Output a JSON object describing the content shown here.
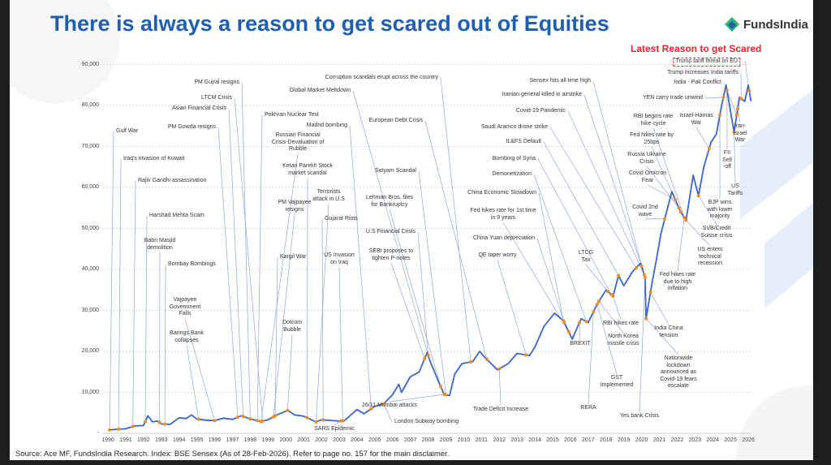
{
  "title": "There is always a reason to get scared out of Equities",
  "logo": {
    "text": "FundsIndia",
    "brand_color": "#1f5fae",
    "accent_color": "#2bb673"
  },
  "latest_header": "Latest Reason to get Scared",
  "source": "Source: Ace MF, FundsIndia Research. Index: BSE Sensex (As of 28-Feb-2026). Refer to page no. 157 for the main disclaimer.",
  "chart_data": {
    "type": "line",
    "title": "",
    "xlabel": "",
    "ylabel": "",
    "xlim": [
      1990,
      2026
    ],
    "ylim": [
      0,
      90000
    ],
    "grid": true,
    "line_color": "#3a66c4",
    "marker_color": "#f08a24",
    "y_ticks": [
      "-",
      "10,000",
      "20,000",
      "30,000",
      "40,000",
      "50,000",
      "60,000",
      "70,000",
      "80,000",
      "90,000"
    ],
    "x_ticks": [
      "1990",
      "1991",
      "1992",
      "1993",
      "1994",
      "1995",
      "1996",
      "1997",
      "1998",
      "1999",
      "2000",
      "2001",
      "2002",
      "2003",
      "2004",
      "2005",
      "2006",
      "2007",
      "2008",
      "2009",
      "2010",
      "2011",
      "2012",
      "2013",
      "2014",
      "2015",
      "2016",
      "2017",
      "2018",
      "2019",
      "2020",
      "2021",
      "2022",
      "2023",
      "2024",
      "2025",
      "2026"
    ],
    "series": [
      {
        "x": [
          1990,
          1990.5,
          1991,
          1991.5,
          1992,
          1992.25,
          1992.5,
          1992.8,
          1993,
          1993.5,
          1994,
          1994.4,
          1994.7,
          1995,
          1995.5,
          1996,
          1996.5,
          1997,
          1997.5,
          1998,
          1998.6,
          1999,
          1999.5,
          2000.1,
          2000.5,
          2001,
          2001.7,
          2002,
          2003,
          2003.3,
          2004,
          2004.4,
          2005,
          2005.5,
          2006,
          2006.35,
          2006.5,
          2007,
          2007.5,
          2007.95,
          2008.1,
          2008.5,
          2008.9,
          2009.2,
          2009.5,
          2009.9,
          2010.5,
          2010.9,
          2011.2,
          2011.9,
          2012.5,
          2013,
          2013.7,
          2014,
          2014.5,
          2015.1,
          2015.6,
          2016.1,
          2016.6,
          2017,
          2017.5,
          2018,
          2018.4,
          2018.7,
          2019,
          2019.5,
          2019.95,
          2020.2,
          2020.25,
          2020.6,
          2020.9,
          2021.1,
          2021.7,
          2021.9,
          2022.2,
          2022.5,
          2022.9,
          2023.2,
          2023.5,
          2023.9,
          2024.2,
          2024.5,
          2024.75,
          2025.1,
          2025.2,
          2025.5,
          2025.8,
          2026.0,
          2026.15
        ],
        "y": [
          800,
          1000,
          1100,
          1800,
          1900,
          4300,
          2800,
          3000,
          2300,
          2200,
          3800,
          3600,
          4500,
          3500,
          3200,
          3100,
          3700,
          3400,
          4300,
          3500,
          2900,
          3300,
          4500,
          5600,
          4500,
          4200,
          2800,
          3300,
          3000,
          3100,
          5800,
          4800,
          6600,
          7200,
          9400,
          12000,
          10000,
          13800,
          15000,
          19800,
          17700,
          13500,
          9500,
          9200,
          14500,
          17000,
          17500,
          20000,
          18500,
          15500,
          17000,
          19500,
          19000,
          21000,
          26000,
          29300,
          27500,
          23000,
          28000,
          27000,
          31500,
          35000,
          33500,
          38500,
          36000,
          39500,
          41500,
          38000,
          28000,
          37000,
          44000,
          49000,
          59000,
          57000,
          54000,
          52000,
          63000,
          58000,
          65000,
          71000,
          73000,
          80000,
          85000,
          76000,
          73500,
          82000,
          81000,
          85000,
          81000
        ]
      }
    ],
    "events": [
      {
        "label": "Gulf War",
        "year": 1990.1
      },
      {
        "label": "Iraq's invasion of Kuwait",
        "year": 1990.6
      },
      {
        "label": "Rajiv Gandhi assassination",
        "year": 1991.4
      },
      {
        "label": "Harshad Mehta Scam",
        "year": 1992.1
      },
      {
        "label": "Babri Masjid\ndemolition",
        "year": 1992.9
      },
      {
        "label": "Bombay Bombings",
        "year": 1993.2
      },
      {
        "label": "Vajpayee\nGovernment\nFalls",
        "year": 1996.0
      },
      {
        "label": "Barings Bank\ncollapses",
        "year": 1995.1
      },
      {
        "label": "PM Gowda resigns",
        "year": 1997.3
      },
      {
        "label": "Asian Financial Crisis",
        "year": 1997.6
      },
      {
        "label": "LTCM Crisis",
        "year": 1998.7
      },
      {
        "label": "PM Gujral resigns",
        "year": 1998.0
      },
      {
        "label": "Pokhran Nuclear Test",
        "year": 1998.4
      },
      {
        "label": "Russian Financial\nCrisis-Devaluation of\nRubble",
        "year": 1998.6
      },
      {
        "label": "Ketan Parekh Stock\nmarket scandal",
        "year": 2001.2
      },
      {
        "label": "PM Vajpayee\nresigns",
        "year": 1999.3
      },
      {
        "label": "Terrorists\nattack in U.S",
        "year": 2001.7
      },
      {
        "label": "Gujarat Riots",
        "year": 2002.1
      },
      {
        "label": "Kargil War",
        "year": 1999.4
      },
      {
        "label": "US Invasion\non Iraq",
        "year": 2003.2
      },
      {
        "label": "Dotcom\nBubble",
        "year": 2000.1
      },
      {
        "label": "Corruption scandals erupt across the country",
        "year": 2010.4
      },
      {
        "label": "Global Market Meltdown",
        "year": 2008.0
      },
      {
        "label": "Madrid bombing",
        "year": 2004.8
      },
      {
        "label": "European Debt Crisis",
        "year": 2011.3
      },
      {
        "label": "Satyam Scandal",
        "year": 2009.0
      },
      {
        "label": "Lehman Bros. files\nfor Bankruptcy",
        "year": 2008.7
      },
      {
        "label": "U.S Financial Crisis",
        "year": 2008.0
      },
      {
        "label": "SEBI proposes to\ntighten P-notes",
        "year": 2007.8
      },
      {
        "label": "26/11 Mumbai attacks",
        "year": 2008.9
      },
      {
        "label": "London Subway bombing",
        "year": 2005.5
      },
      {
        "label": "SARS Epidemic",
        "year": 2003.1
      },
      {
        "label": "Trade Deficit Increase",
        "year": 2012.0
      },
      {
        "label": "QE taper worry",
        "year": 2013.5
      },
      {
        "label": "Sensex hits all time high",
        "year": 2020.0
      },
      {
        "label": "Iranian general killed in airstrike",
        "year": 2020.0
      },
      {
        "label": "Covid-19 Pandemic",
        "year": 2020.15
      },
      {
        "label": "Saudi Aramco drone strike",
        "year": 2019.7
      },
      {
        "label": "IL&FS Default",
        "year": 2018.7
      },
      {
        "label": "Bombing of Syria",
        "year": 2018.3
      },
      {
        "label": "Demonetization",
        "year": 2016.9
      },
      {
        "label": "China Economic Slowdown",
        "year": 2015.6
      },
      {
        "label": "Fed hikes rate for 1st time\nin 9 years",
        "year": 2015.9
      },
      {
        "label": "China Yuan depreciation",
        "year": 2015.65
      },
      {
        "label": "LTCG\nTax",
        "year": 2018.1
      },
      {
        "label": "RBI hikes rate",
        "year": 2018.4
      },
      {
        "label": "North Korea\nmissile crisis",
        "year": 2017.6
      },
      {
        "label": "BREXIT",
        "year": 2016.5
      },
      {
        "label": "GST\nImplemented",
        "year": 2017.5
      },
      {
        "label": "RERA",
        "year": 2017.3
      },
      {
        "label": "Yes bank Crisis",
        "year": 2020.2
      },
      {
        "label": "Nationwide\nlockdown\nannounced as\nCovid-19 fears\nescalate",
        "year": 2020.25
      },
      {
        "label": "India China\ntension",
        "year": 2020.5
      },
      {
        "label": "Fed hikes rate\ndue to high\ninflation",
        "year": 2022.4
      },
      {
        "label": "US enters\ntechnical\nrecession",
        "year": 2022.5
      },
      {
        "label": "SVB/Credit\nSuisse crisis",
        "year": 2023.2
      },
      {
        "label": "BJP wins\nwith lower\nmajority",
        "year": 2024.4
      },
      {
        "label": "US\nTariffs",
        "year": 2025.2
      },
      {
        "label": "FII\nSell\n-off",
        "year": 2024.8
      },
      {
        "label": "Iran-\nIsrael\nWar",
        "year": 2025.4
      },
      {
        "label": "Israel-Hamas\nWar",
        "year": 2023.8
      },
      {
        "label": "Covid 2nd\nwave",
        "year": 2021.3
      },
      {
        "label": "Covid Omicron\nFear",
        "year": 2021.9
      },
      {
        "label": "Russia Ukraine\nCrisis",
        "year": 2022.1
      },
      {
        "label": "Fed hikes rate by\n25bps",
        "year": 2022.2
      },
      {
        "label": "RBI begins rate\nhike cycle",
        "year": 2022.4
      },
      {
        "label": "YEN carry trade unwind",
        "year": 2024.6
      },
      {
        "label": "India - Pak Conflict",
        "year": 2025.35
      },
      {
        "label": "Trump increases India tariffs",
        "year": 2025.6
      },
      {
        "label": "Trump tariff threat on EU",
        "year": 2026.05,
        "highlight": true
      }
    ]
  }
}
